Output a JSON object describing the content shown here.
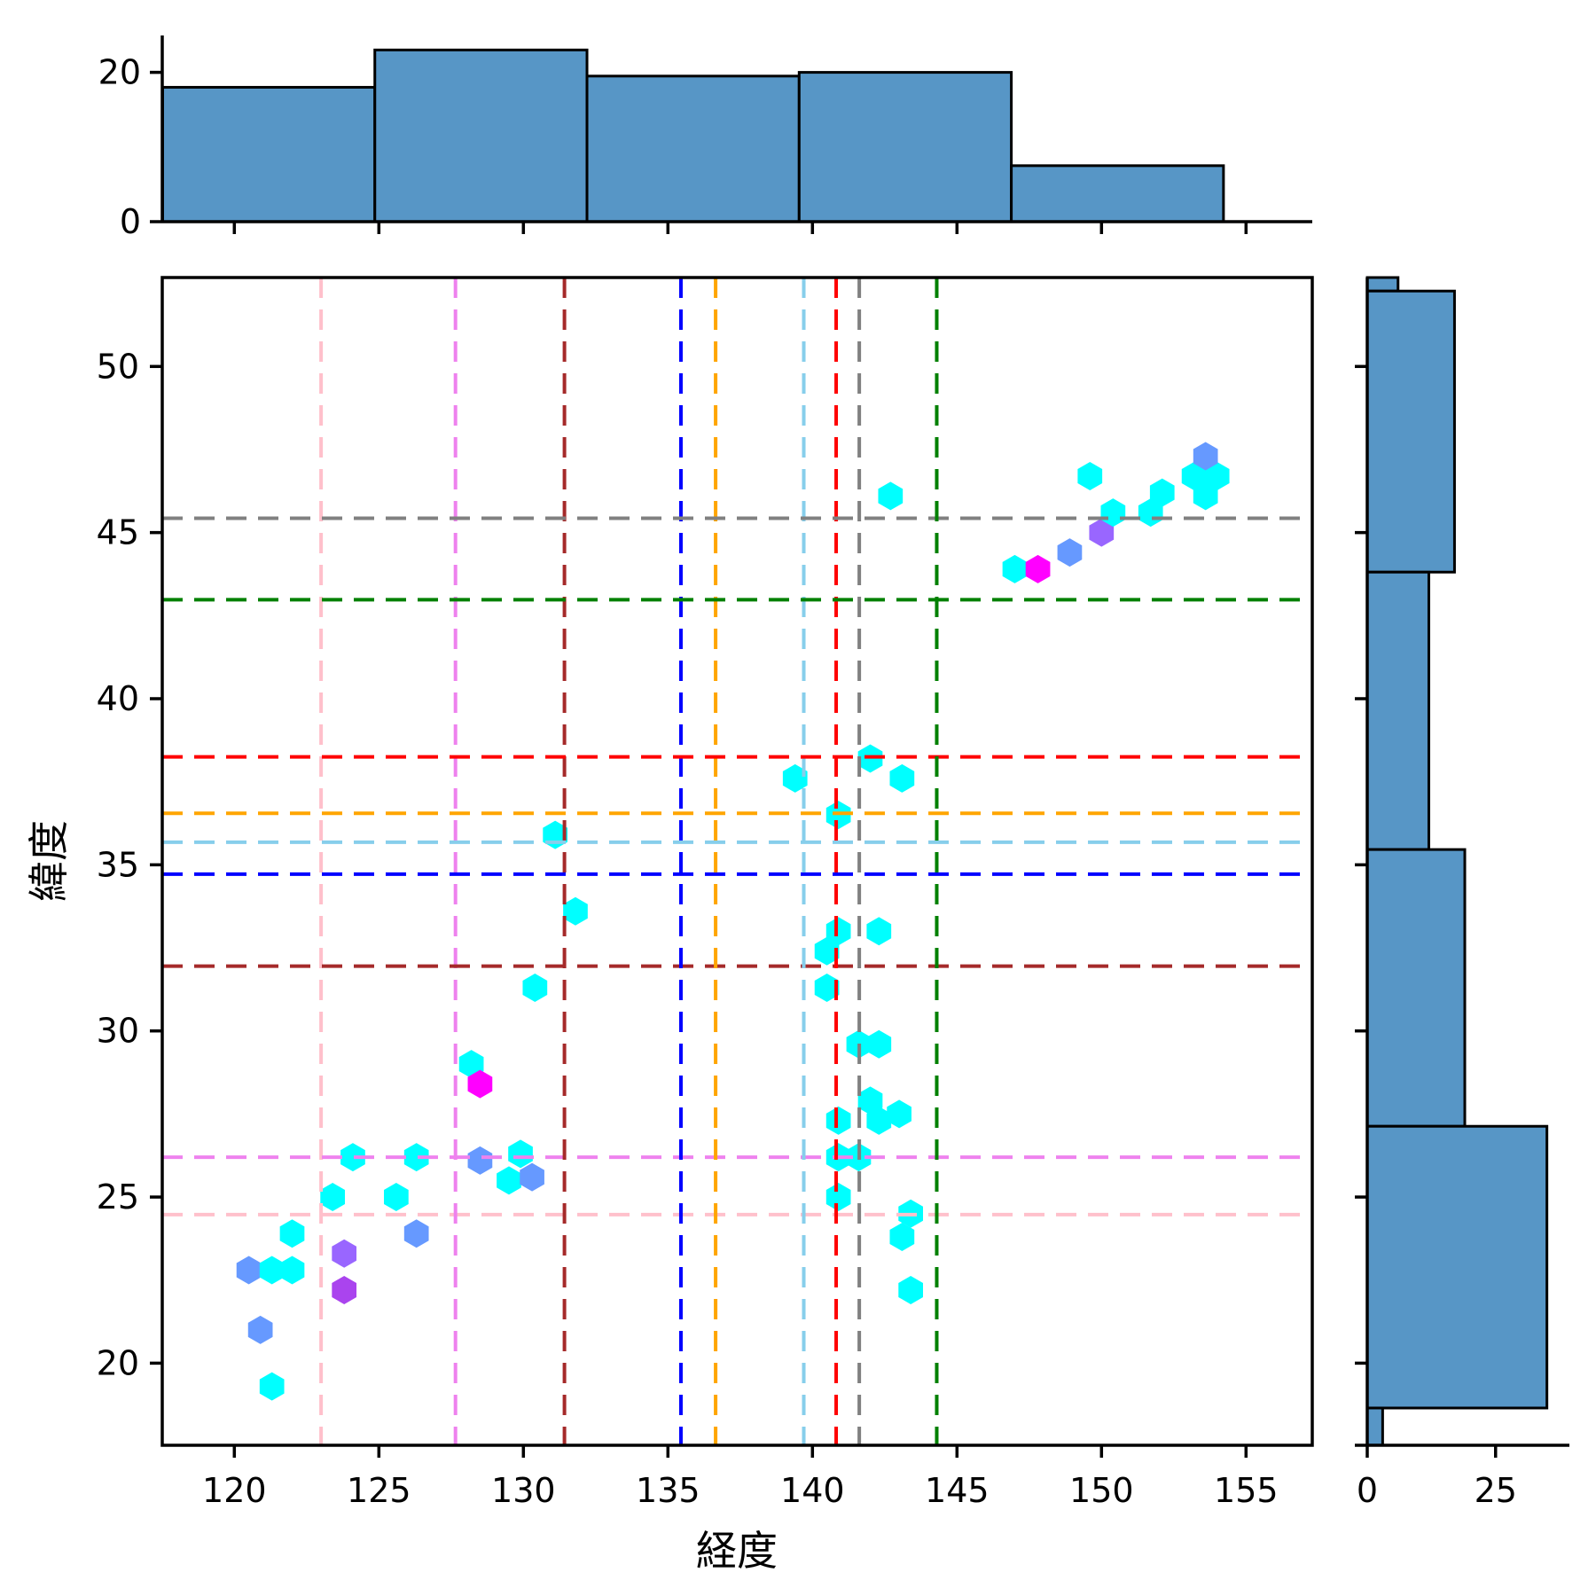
{
  "figure": {
    "xlabel": "経度",
    "ylabel": "緯度"
  },
  "chart_data": {
    "type": "scatter",
    "title": "",
    "xlabel": "経度",
    "ylabel": "緯度",
    "xlim": [
      117.5,
      157.4
    ],
    "ylim": [
      17.5,
      52.7
    ],
    "x_ticks": [
      120,
      125,
      130,
      135,
      140,
      145,
      150,
      155
    ],
    "y_ticks": [
      20,
      25,
      30,
      35,
      40,
      45,
      50
    ],
    "grid": false,
    "legend": "none",
    "marker": "hexagon",
    "palette": {
      "c0": "#00ffff",
      "c1": "#6699ff",
      "c2": "#9966ff",
      "c3": "#aa44ee",
      "c4": "#ff00ff"
    },
    "points": [
      [
        121.3,
        19.3,
        "c0"
      ],
      [
        120.9,
        21.0,
        "c1"
      ],
      [
        123.8,
        22.2,
        "c3"
      ],
      [
        120.5,
        22.8,
        "c1"
      ],
      [
        121.3,
        22.8,
        "c0"
      ],
      [
        122.0,
        22.8,
        "c0"
      ],
      [
        123.8,
        23.3,
        "c2"
      ],
      [
        122.0,
        23.9,
        "c0"
      ],
      [
        126.3,
        23.9,
        "c1"
      ],
      [
        123.4,
        25.0,
        "c0"
      ],
      [
        125.6,
        25.0,
        "c0"
      ],
      [
        124.1,
        26.2,
        "c0"
      ],
      [
        126.3,
        26.2,
        "c0"
      ],
      [
        128.5,
        26.1,
        "c1"
      ],
      [
        129.9,
        26.3,
        "c0"
      ],
      [
        129.5,
        25.5,
        "c0"
      ],
      [
        130.3,
        25.6,
        "c1"
      ],
      [
        128.2,
        29.0,
        "c0"
      ],
      [
        128.5,
        28.4,
        "c4"
      ],
      [
        130.4,
        31.3,
        "c0"
      ],
      [
        131.8,
        33.6,
        "c0"
      ],
      [
        131.1,
        35.9,
        "c0"
      ],
      [
        139.4,
        37.6,
        "c0"
      ],
      [
        142.0,
        38.2,
        "c0"
      ],
      [
        143.1,
        37.6,
        "c0"
      ],
      [
        140.9,
        36.5,
        "c0"
      ],
      [
        140.9,
        33.0,
        "c0"
      ],
      [
        142.3,
        33.0,
        "c0"
      ],
      [
        140.5,
        32.4,
        "c0"
      ],
      [
        140.5,
        31.3,
        "c0"
      ],
      [
        141.6,
        29.6,
        "c0"
      ],
      [
        142.3,
        29.6,
        "c0"
      ],
      [
        142.0,
        27.9,
        "c0"
      ],
      [
        143.0,
        27.5,
        "c0"
      ],
      [
        142.3,
        27.3,
        "c0"
      ],
      [
        140.9,
        27.3,
        "c0"
      ],
      [
        140.9,
        26.2,
        "c0"
      ],
      [
        141.6,
        26.2,
        "c0"
      ],
      [
        140.9,
        25.0,
        "c0"
      ],
      [
        143.4,
        24.5,
        "c0"
      ],
      [
        143.1,
        23.8,
        "c0"
      ],
      [
        143.4,
        22.2,
        "c0"
      ],
      [
        142.7,
        46.1,
        "c0"
      ],
      [
        147.0,
        43.9,
        "c0"
      ],
      [
        147.8,
        43.9,
        "c4"
      ],
      [
        148.9,
        44.4,
        "c1"
      ],
      [
        150.0,
        45.0,
        "c2"
      ],
      [
        150.4,
        45.6,
        "c0"
      ],
      [
        149.6,
        46.7,
        "c0"
      ],
      [
        151.7,
        45.6,
        "c0"
      ],
      [
        152.1,
        46.2,
        "c0"
      ],
      [
        153.2,
        46.7,
        "c0"
      ],
      [
        154.0,
        46.7,
        "c0"
      ],
      [
        153.6,
        46.1,
        "c0"
      ],
      [
        153.6,
        47.3,
        "c1"
      ]
    ],
    "reference_lines": [
      {
        "color": "#ffc0cb",
        "lon": 123.0,
        "lat": 24.47,
        "style": "dashed"
      },
      {
        "color": "#ee82ee",
        "lon": 127.65,
        "lat": 26.2,
        "style": "dashed"
      },
      {
        "color": "#a52a2a",
        "lon": 131.42,
        "lat": 31.95,
        "style": "dashed"
      },
      {
        "color": "#0000ff",
        "lon": 135.45,
        "lat": 34.72,
        "style": "dashed"
      },
      {
        "color": "#ffa500",
        "lon": 136.65,
        "lat": 36.55,
        "style": "dashed"
      },
      {
        "color": "#87ceeb",
        "lon": 139.7,
        "lat": 35.68,
        "style": "dashed"
      },
      {
        "color": "#ff0000",
        "lon": 140.82,
        "lat": 38.25,
        "style": "dashed"
      },
      {
        "color": "#808080",
        "lon": 141.62,
        "lat": 45.43,
        "style": "dashed"
      },
      {
        "color": "#008000",
        "lon": 144.3,
        "lat": 42.98,
        "style": "dashed"
      }
    ],
    "marginal_top": {
      "type": "histogram",
      "axis": "longitude",
      "bin_edges": [
        117.52,
        124.86,
        132.2,
        139.54,
        146.88,
        154.22
      ],
      "counts": [
        18,
        23,
        19.5,
        20,
        7.5
      ],
      "y_ticks": [
        0,
        20
      ],
      "ylim": [
        0,
        25
      ],
      "fill": "#5796c6",
      "edge": "#000000"
    },
    "marginal_right": {
      "type": "histogram",
      "axis": "latitude",
      "lat_edges_top_to_bottom": [
        52.68,
        52.27,
        43.81,
        35.46,
        27.13,
        18.65,
        17.53
      ],
      "counts_top_to_bottom": [
        6,
        17,
        12,
        19,
        35,
        3
      ],
      "x_ticks": [
        0,
        25
      ],
      "xlim": [
        0,
        43
      ],
      "fill": "#5796c6",
      "edge": "#000000",
      "note_clipped_bins": "first and last bins are clipped by the axis limits"
    }
  }
}
